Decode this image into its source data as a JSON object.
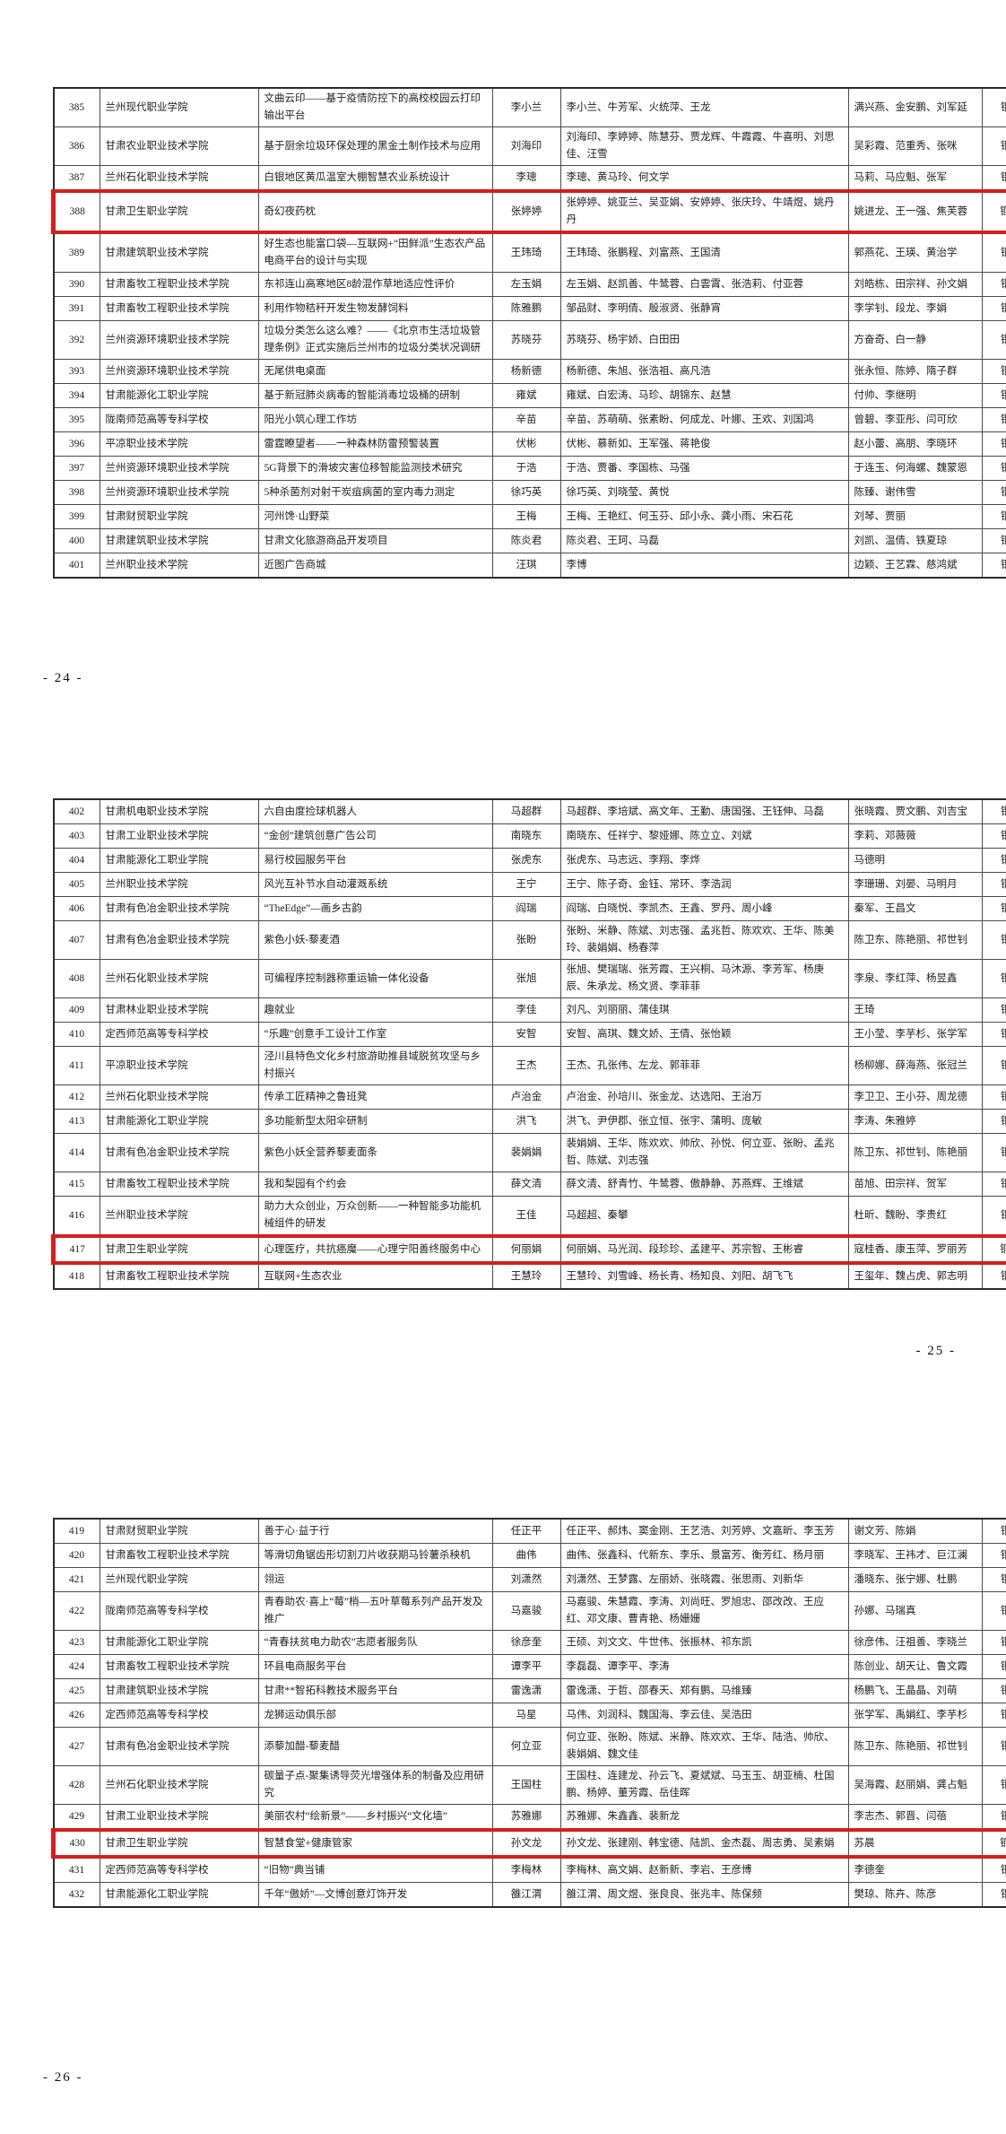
{
  "markers": [
    {
      "label": "- 24 -"
    },
    {
      "label": "- 25 -"
    },
    {
      "label": "- 26 -"
    }
  ],
  "highlight_color": "#d31f1f",
  "award_color_meaning": "铜奖",
  "tables": [
    {
      "rows": [
        {
          "no": "385",
          "school": "兰州现代职业学院",
          "project": "文曲云印——基于疫情防控下的高校校园云打印输出平台",
          "leader": "李小兰",
          "members": "李小兰、牛芳军、火统萍、王龙",
          "advisors": "满兴燕、金安鹏、刘军延",
          "award": "铜奖",
          "highlighted": false
        },
        {
          "no": "386",
          "school": "甘肃农业职业技术学院",
          "project": "基于厨余垃圾环保处理的黑金土制作技术与应用",
          "leader": "刘海印",
          "members": "刘海印、李婷婷、陈慧芬、贾龙辉、牛霞霞、牛喜明、刘思佳、汪雪",
          "advisors": "吴彩霞、范重秀、张咪",
          "award": "铜奖",
          "highlighted": false
        },
        {
          "no": "387",
          "school": "兰州石化职业技术学院",
          "project": "白银地区黄瓜温室大棚智慧农业系统设计",
          "leader": "李璁",
          "members": "李璁、黄马玲、何文学",
          "advisors": "马莉、马应魁、张军",
          "award": "铜奖",
          "highlighted": false
        },
        {
          "no": "388",
          "school": "甘肃卫生职业学院",
          "project": "奇幻夜药枕",
          "leader": "张婷婷",
          "members": "张婷婷、姚亚兰、吴亚娟、安婷婷、张庆玲、牛靖煜、姚丹丹",
          "advisors": "姚进龙、王一强、焦芙蓉",
          "award": "铜奖",
          "highlighted": true
        },
        {
          "no": "389",
          "school": "甘肃建筑职业技术学院",
          "project": "好生态也能富口袋—互联网+“田鲜派”生态农产品电商平台的设计与实现",
          "leader": "王玮琦",
          "members": "王玮琦、张鹏程、刘富燕、王国清",
          "advisors": "郭燕花、王瑛、黄治学",
          "award": "铜奖",
          "highlighted": false
        },
        {
          "no": "390",
          "school": "甘肃畜牧工程职业技术学院",
          "project": "东祁连山高寒地区8龄混作草地适应性评价",
          "leader": "左玉娟",
          "members": "左玉娟、赵凯善、牛鸶蓉、白雲霄、张浩莉、付亚蓉",
          "advisors": "刘皓栋、田宗祥、孙文娟",
          "award": "铜奖",
          "highlighted": false
        },
        {
          "no": "391",
          "school": "甘肃畜牧工程职业技术学院",
          "project": "利用作物秸秆开发生物发酵饲料",
          "leader": "陈雅鹏",
          "members": "邹品财、李明倩、殷淑贤、张静宵",
          "advisors": "李学钊、段龙、李娟",
          "award": "铜奖",
          "highlighted": false
        },
        {
          "no": "392",
          "school": "兰州资源环境职业技术学院",
          "project": "垃圾分类怎么这么难？——《北京市生活垃圾管理条例》正式实施后兰州市的垃圾分类状况调研",
          "leader": "苏晓芬",
          "members": "苏晓芬、杨宇娇、白田田",
          "advisors": "方奋奇、白一静",
          "award": "铜奖",
          "highlighted": false
        },
        {
          "no": "393",
          "school": "兰州资源环境职业技术学院",
          "project": "无尾供电桌面",
          "leader": "杨新德",
          "members": "杨新德、朱旭、张浩祖、高凡浩",
          "advisors": "张永恒、陈婷、隋子群",
          "award": "铜奖",
          "highlighted": false
        },
        {
          "no": "394",
          "school": "甘肃能源化工职业学院",
          "project": "基于新冠肺炎病毒的智能消毒垃圾桶的研制",
          "leader": "雍斌",
          "members": "雍斌、白宏涛、马珍、胡锦东、赵慧",
          "advisors": "付帅、李继明",
          "award": "铜奖",
          "highlighted": false
        },
        {
          "no": "395",
          "school": "陇南师范高等专科学校",
          "project": "阳光小筑心理工作坊",
          "leader": "辛苗",
          "members": "辛苗、苏萌萌、张素盼、何成龙、叶娜、王欢、刘国鸿",
          "advisors": "曾碧、李亚彤、闫可欣",
          "award": "铜奖",
          "highlighted": false
        },
        {
          "no": "396",
          "school": "平凉职业技术学院",
          "project": "雷霆瞭望者——一种森林防雷预警装置",
          "leader": "伏彬",
          "members": "伏彬、慕新如、王军强、蒋艳俊",
          "advisors": "赵小蕾、高朋、李晓环",
          "award": "铜奖",
          "highlighted": false
        },
        {
          "no": "397",
          "school": "兰州资源环境职业技术学院",
          "project": "5G背景下的滑坡灾害位移智能监测技术研究",
          "leader": "于浩",
          "members": "于浩、贾番、李国栋、马强",
          "advisors": "于连玉、何海螺、魏蒙恩",
          "award": "铜奖",
          "highlighted": false
        },
        {
          "no": "398",
          "school": "兰州资源环境职业技术学院",
          "project": "5种杀菌剂对射干炭疽病菌的室内毒力测定",
          "leader": "徐巧英",
          "members": "徐巧英、刘晓莹、黄悦",
          "advisors": "陈臻、谢伟雪",
          "award": "铜奖",
          "highlighted": false
        },
        {
          "no": "399",
          "school": "甘肃财贸职业学院",
          "project": "河州馋·山野菜",
          "leader": "王梅",
          "members": "王梅、王艳红、何玉芬、邱小永、龚小雨、宋石花",
          "advisors": "刘琴、贾丽",
          "award": "铜奖",
          "highlighted": false
        },
        {
          "no": "400",
          "school": "甘肃建筑职业技术学院",
          "project": "甘肃文化旅游商品开发项目",
          "leader": "陈炎君",
          "members": "陈炎君、王珂、马磊",
          "advisors": "刘凯、温倩、铁夏琼",
          "award": "铜奖",
          "highlighted": false
        },
        {
          "no": "401",
          "school": "兰州职业技术学院",
          "project": "近图广告商城",
          "leader": "汪琪",
          "members": "李博",
          "advisors": "边颖、王艺霖、慈鸿斌",
          "award": "铜奖",
          "highlighted": false
        }
      ]
    },
    {
      "rows": [
        {
          "no": "402",
          "school": "甘肃机电职业技术学院",
          "project": "六自由度捡球机器人",
          "leader": "马超群",
          "members": "马超群、李培斌、高文年、王勤、唐国强、王钰伸、马磊",
          "advisors": "张晓霞、贾文鹏、刘吉宝",
          "award": "铜奖",
          "highlighted": false
        },
        {
          "no": "403",
          "school": "甘肃工业职业技术学院",
          "project": "“金创”建筑创意广告公司",
          "leader": "南晓东",
          "members": "南晓东、任祥宁、黎娅娜、陈立立、刘斌",
          "advisors": "李莉、邓薇薇",
          "award": "铜奖",
          "highlighted": false
        },
        {
          "no": "404",
          "school": "甘肃能源化工职业学院",
          "project": "易行校园服务平台",
          "leader": "张虎东",
          "members": "张虎东、马志远、李翔、李烨",
          "advisors": "马德明",
          "award": "铜奖",
          "highlighted": false
        },
        {
          "no": "405",
          "school": "兰州职业技术学院",
          "project": "风光互补节水自动灌溉系统",
          "leader": "王宁",
          "members": "王宁、陈子奇、金钰、常环、李浩润",
          "advisors": "李珊珊、刘晏、马明月",
          "award": "铜奖",
          "highlighted": false
        },
        {
          "no": "406",
          "school": "甘肃有色冶金职业技术学院",
          "project": "“TheEdge”—画乡古韵",
          "leader": "阎瑞",
          "members": "阎瑞、白晓悦、李凯杰、王鑫、罗丹、周小峰",
          "advisors": "秦军、王昌文",
          "award": "铜奖",
          "highlighted": false
        },
        {
          "no": "407",
          "school": "甘肃有色冶金职业技术学院",
          "project": "紫色小妖-藜麦酒",
          "leader": "张盼",
          "members": "张盼、米静、陈斌、刘志强、孟兆哲、陈欢欢、王华、陈美玲、裴娟娟、杨春萍",
          "advisors": "陈卫东、陈艳丽、祁世钊",
          "award": "铜奖",
          "highlighted": false
        },
        {
          "no": "408",
          "school": "兰州石化职业技术学院",
          "project": "可编程序控制器称重运输一体化设备",
          "leader": "张旭",
          "members": "张旭、樊瑞瑞、张芳霞、王兴桐、马沐源、李芳军、杨庚辰、朱承龙、杨文贤、李菲菲",
          "advisors": "李泉、李红萍、杨昱鑫",
          "award": "铜奖",
          "highlighted": false
        },
        {
          "no": "409",
          "school": "甘肃林业职业技术学院",
          "project": "趣就业",
          "leader": "李佳",
          "members": "刘凡、刘丽丽、蒲佳琪",
          "advisors": "王琦",
          "award": "铜奖",
          "highlighted": false
        },
        {
          "no": "410",
          "school": "定西师范高等专科学校",
          "project": "“乐趣”创意手工设计工作室",
          "leader": "安智",
          "members": "安智、高琪、魏文娇、王倩、张怡颖",
          "advisors": "王小莹、李芋杉、张学军",
          "award": "铜奖",
          "highlighted": false
        },
        {
          "no": "411",
          "school": "平凉职业技术学院",
          "project": "泾川县特色文化乡村旅游助推县域脱贫攻坚与乡村振兴",
          "leader": "王杰",
          "members": "王杰、孔张伟、左龙、郭菲菲",
          "advisors": "杨柳娜、薛海燕、张冠兰",
          "award": "铜奖",
          "highlighted": false
        },
        {
          "no": "412",
          "school": "兰州石化职业技术学院",
          "project": "传承工匠精神之鲁班凳",
          "leader": "卢治金",
          "members": "卢治金、孙培川、张金龙、达选阳、王治万",
          "advisors": "李卫卫、王小芬、周龙德",
          "award": "铜奖",
          "highlighted": false
        },
        {
          "no": "413",
          "school": "甘肃能源化工职业学院",
          "project": "多功能新型太阳伞研制",
          "leader": "洪飞",
          "members": "洪飞、尹伊郡、张立恒、张宇、蒲明、庞敏",
          "advisors": "李涛、朱雅婷",
          "award": "铜奖",
          "highlighted": false
        },
        {
          "no": "414",
          "school": "甘肃有色冶金职业技术学院",
          "project": "紫色小妖全营养藜麦面条",
          "leader": "裴娟娟",
          "members": "裴娟娟、王华、陈欢欢、帅欣、孙悦、何立亚、张盼、孟兆哲、陈斌、刘志强",
          "advisors": "陈卫东、祁世钊、陈艳丽",
          "award": "铜奖",
          "highlighted": false
        },
        {
          "no": "415",
          "school": "甘肃畜牧工程职业技术学院",
          "project": "我和梨园有个约会",
          "leader": "薛文清",
          "members": "薛文清、舒青竹、牛鸶蓉、傲静静、苏燕辉、王维斌",
          "advisors": "苗旭、田宗祥、贺军",
          "award": "铜奖",
          "highlighted": false
        },
        {
          "no": "416",
          "school": "兰州职业技术学院",
          "project": "助力大众创业，万众创新——一种智能多功能机械组件的研发",
          "leader": "王佳",
          "members": "马超超、秦攀",
          "advisors": "杜昕、魏盼、李贵红",
          "award": "铜奖",
          "highlighted": false
        },
        {
          "no": "417",
          "school": "甘肃卫生职业学院",
          "project": "心理医疗，共抗癌魔——心理宁阳善终服务中心",
          "leader": "何丽娟",
          "members": "何丽娟、马光润、段珍珍、孟建平、苏宗智、王彬睿",
          "advisors": "寇桂香、康玉萍、罗丽芳",
          "award": "铜奖",
          "highlighted": true
        },
        {
          "no": "418",
          "school": "甘肃畜牧工程职业技术学院",
          "project": "互联网+生态农业",
          "leader": "王慧玲",
          "members": "王慧玲、刘雪峰、杨长青、杨知良、刘阳、胡飞飞",
          "advisors": "王玺年、魏占虎、郭志明",
          "award": "铜奖",
          "highlighted": false
        }
      ]
    },
    {
      "rows": [
        {
          "no": "419",
          "school": "甘肃财贸职业学院",
          "project": "善于心·益于行",
          "leader": "任正平",
          "members": "任正平、郝炜、窦金刚、王艺浩、刘芳婷、文嘉昕、李玉芳",
          "advisors": "谢文芳、陈娟",
          "award": "铜奖",
          "highlighted": false
        },
        {
          "no": "420",
          "school": "甘肃畜牧工程职业技术学院",
          "project": "等滑切角锯齿形切割刀片收获期马铃薯杀秧机",
          "leader": "曲伟",
          "members": "曲伟、张鑫科、代新东、李乐、景富芳、衡芳红、杨月丽",
          "advisors": "李晓军、王祎才、巨江澜",
          "award": "铜奖",
          "highlighted": false
        },
        {
          "no": "421",
          "school": "兰州现代职业学院",
          "project": "翎运",
          "leader": "刘潇然",
          "members": "刘潇然、王梦露、左丽娇、张晓霞、张思雨、刘新华",
          "advisors": "潘晓东、张宁娜、杜鹏",
          "award": "铜奖",
          "highlighted": false
        },
        {
          "no": "422",
          "school": "陇南师范高等专科学校",
          "project": "青春助农·喜上“莓”梢—五叶草莓系列产品开发及推广",
          "leader": "马嘉骏",
          "members": "马嘉骏、朱慧霞、李涛、刘尚旺、罗旭忠、邵改改、王应红、邓文康、曹青艳、杨姗姗",
          "advisors": "孙娜、马瑞真",
          "award": "铜奖",
          "highlighted": false
        },
        {
          "no": "423",
          "school": "甘肃能源化工职业学院",
          "project": "“青春扶贫电力助农”志愿者服务队",
          "leader": "徐彦奎",
          "members": "王硕、刘文文、牛世伟、张振林、祁东凯",
          "advisors": "徐彦伟、汪祖善、李晓兰",
          "award": "铜奖",
          "highlighted": false
        },
        {
          "no": "424",
          "school": "甘肃畜牧工程职业技术学院",
          "project": "环县电商服务平台",
          "leader": "谭李平",
          "members": "李磊磊、谭李平、李涛",
          "advisors": "陈创业、胡天让、鲁文霞",
          "award": "铜奖",
          "highlighted": false
        },
        {
          "no": "425",
          "school": "甘肃建筑职业技术学院",
          "project": "甘肃**智拓科教技术服务平台",
          "leader": "雷逸潇",
          "members": "雷逸潇、于哲、邵春天、郑有鹏、马维臻",
          "advisors": "杨鹏飞、王晶晶、刘萌",
          "award": "铜奖",
          "highlighted": false
        },
        {
          "no": "426",
          "school": "定西师范高等专科学校",
          "project": "龙狮运动俱乐部",
          "leader": "马星",
          "members": "马伟、刘润科、魏国海、李云佳、吴浩田",
          "advisors": "张学军、禹娟红、李芋杉",
          "award": "铜奖",
          "highlighted": false
        },
        {
          "no": "427",
          "school": "甘肃有色冶金职业技术学院",
          "project": "添藜加醋-藜麦醋",
          "leader": "何立亚",
          "members": "何立亚、张盼、陈斌、米静、陈欢欢、王华、陆浩、帅欣、裴娟娟、魏文佳",
          "advisors": "陈卫东、陈艳丽、祁世钊",
          "award": "铜奖",
          "highlighted": false
        },
        {
          "no": "428",
          "school": "兰州石化职业技术学院",
          "project": "碳量子点-聚集诱导荧光增强体系的制备及应用研究",
          "leader": "王国柱",
          "members": "王国柱、连建龙、孙云飞、夏斌斌、马玉玉、胡亚楠、杜国鹏、杨婷、董芳霞、岳佳晖",
          "advisors": "吴海霞、赵丽娟、龚占魁",
          "award": "铜奖",
          "highlighted": false
        },
        {
          "no": "429",
          "school": "甘肃工业职业技术学院",
          "project": "美丽农村“绘新景”——乡村振兴“文化墙”",
          "leader": "苏雅娜",
          "members": "苏雅娜、朱鑫鑫、裴新龙",
          "advisors": "李志杰、郭晋、闫蓓",
          "award": "铜奖",
          "highlighted": false
        },
        {
          "no": "430",
          "school": "甘肃卫生职业学院",
          "project": "智慧食堂+健康管家",
          "leader": "孙文龙",
          "members": "孙文龙、张建刚、韩宝德、陆凯、金杰磊、周志勇、吴素娟",
          "advisors": "苏晨",
          "award": "铜奖",
          "highlighted": true
        },
        {
          "no": "431",
          "school": "定西师范高等专科学校",
          "project": "“旧物”典当铺",
          "leader": "李梅林",
          "members": "李梅林、高文娟、赵新新、李岩、王彦博",
          "advisors": "李德奎",
          "award": "铜奖",
          "highlighted": false
        },
        {
          "no": "432",
          "school": "甘肃能源化工职业学院",
          "project": "千年“傲娇”—文博创意灯饰开发",
          "leader": "雒江渭",
          "members": "雒江渭、周文煜、张良良、张兆丰、陈保频",
          "advisors": "樊琼、陈卉、陈彦",
          "award": "铜奖",
          "highlighted": false
        }
      ]
    }
  ]
}
